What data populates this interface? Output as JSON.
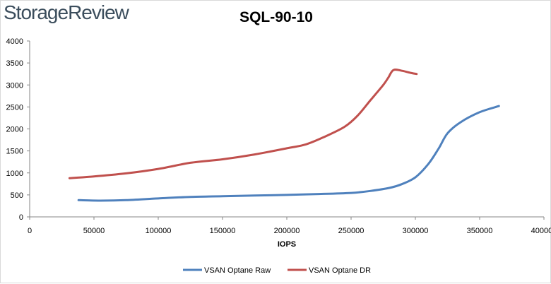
{
  "brand": "StorageReview",
  "chart_data": {
    "type": "line",
    "title": "SQL-90-10",
    "xlabel": "IOPS",
    "ylabel": "",
    "xlim": [
      0,
      400000
    ],
    "ylim": [
      0,
      4000
    ],
    "x_ticks": [
      0,
      50000,
      100000,
      150000,
      200000,
      250000,
      300000,
      350000,
      400000
    ],
    "x_tick_labels": [
      "0",
      "50000",
      "100000",
      "150000",
      "200000",
      "250000",
      "300000",
      "350000",
      "400000"
    ],
    "y_ticks": [
      0,
      500,
      1000,
      1500,
      2000,
      2500,
      3000,
      3500,
      4000
    ],
    "y_tick_labels": [
      "0",
      "500",
      "1000",
      "1500",
      "2000",
      "2500",
      "3000",
      "3500",
      "4000"
    ],
    "grid": false,
    "legend_position": "bottom",
    "series": [
      {
        "name": "VSAN Optane Raw",
        "color": "#4f81bd",
        "points": [
          [
            38000,
            380
          ],
          [
            55000,
            370
          ],
          [
            75000,
            380
          ],
          [
            100000,
            420
          ],
          [
            125000,
            455
          ],
          [
            150000,
            470
          ],
          [
            175000,
            485
          ],
          [
            200000,
            500
          ],
          [
            225000,
            520
          ],
          [
            250000,
            545
          ],
          [
            265000,
            590
          ],
          [
            280000,
            660
          ],
          [
            290000,
            750
          ],
          [
            300000,
            900
          ],
          [
            310000,
            1200
          ],
          [
            318000,
            1550
          ],
          [
            325000,
            1900
          ],
          [
            335000,
            2150
          ],
          [
            350000,
            2380
          ],
          [
            365000,
            2520
          ]
        ]
      },
      {
        "name": "VSAN Optane DR",
        "color": "#c0504d",
        "points": [
          [
            31000,
            880
          ],
          [
            50000,
            920
          ],
          [
            75000,
            990
          ],
          [
            100000,
            1090
          ],
          [
            125000,
            1230
          ],
          [
            150000,
            1310
          ],
          [
            175000,
            1420
          ],
          [
            200000,
            1560
          ],
          [
            215000,
            1650
          ],
          [
            230000,
            1830
          ],
          [
            245000,
            2050
          ],
          [
            255000,
            2300
          ],
          [
            265000,
            2650
          ],
          [
            275000,
            3000
          ],
          [
            279000,
            3170
          ],
          [
            283000,
            3340
          ],
          [
            290000,
            3320
          ],
          [
            297000,
            3270
          ],
          [
            301000,
            3250
          ]
        ]
      }
    ]
  }
}
